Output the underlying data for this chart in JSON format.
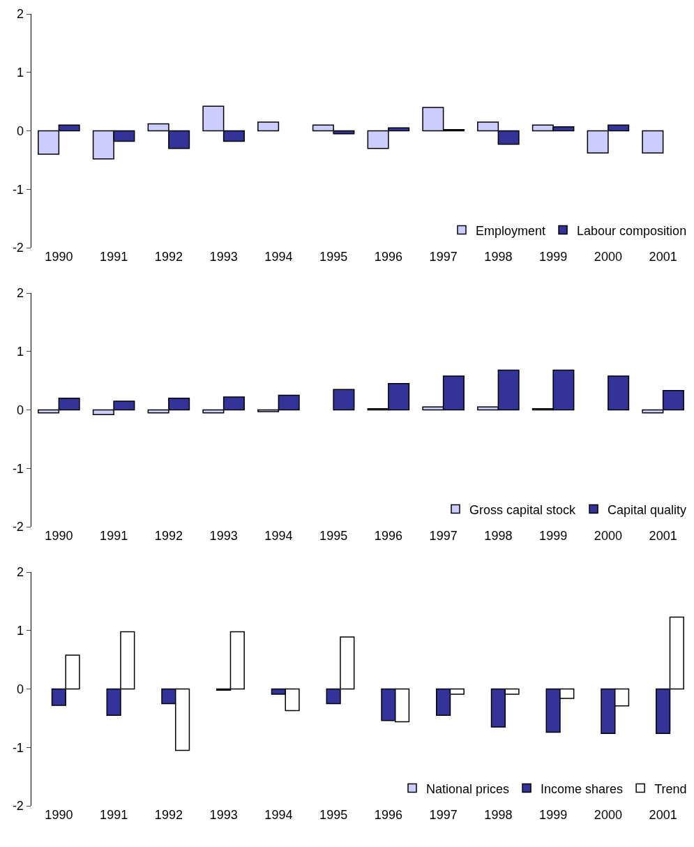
{
  "chart_data": [
    {
      "type": "bar",
      "categories": [
        "1990",
        "1991",
        "1992",
        "1993",
        "1994",
        "1995",
        "1996",
        "1997",
        "1998",
        "1999",
        "2000",
        "2001"
      ],
      "ylim": [
        -2,
        2
      ],
      "yticks": [
        -2,
        -1,
        0,
        1,
        2
      ],
      "grid": false,
      "legend": "bottom right",
      "series": [
        {
          "name": "Employment",
          "color": "#ccccff",
          "values": [
            -0.4,
            -0.48,
            0.12,
            0.42,
            0.15,
            0.1,
            -0.3,
            0.4,
            0.15,
            0.1,
            -0.38,
            -0.38
          ]
        },
        {
          "name": "Labour composition",
          "color": "#333399",
          "values": [
            0.1,
            -0.18,
            -0.3,
            -0.18,
            null,
            -0.05,
            0.05,
            0.02,
            -0.23,
            0.07,
            0.1,
            null
          ]
        }
      ]
    },
    {
      "type": "bar",
      "categories": [
        "1990",
        "1991",
        "1992",
        "1993",
        "1994",
        "1995",
        "1996",
        "1997",
        "1998",
        "1999",
        "2000",
        "2001"
      ],
      "ylim": [
        -2,
        2
      ],
      "yticks": [
        -2,
        -1,
        0,
        1,
        2
      ],
      "grid": false,
      "legend": "bottom right",
      "series": [
        {
          "name": "Gross capital stock",
          "color": "#ccccff",
          "values": [
            -0.05,
            -0.08,
            -0.05,
            -0.05,
            -0.03,
            null,
            0.02,
            0.05,
            0.05,
            0.02,
            null,
            -0.05
          ]
        },
        {
          "name": "Capital quality",
          "color": "#333399",
          "values": [
            0.2,
            0.15,
            0.2,
            0.22,
            0.25,
            0.35,
            0.45,
            0.58,
            0.68,
            0.68,
            0.58,
            0.33
          ]
        }
      ]
    },
    {
      "type": "bar",
      "categories": [
        "1990",
        "1991",
        "1992",
        "1993",
        "1994",
        "1995",
        "1996",
        "1997",
        "1998",
        "1999",
        "2000",
        "2001"
      ],
      "ylim": [
        -2,
        2
      ],
      "yticks": [
        -2,
        -1,
        0,
        1,
        2
      ],
      "grid": false,
      "legend": "bottom right",
      "series": [
        {
          "name": "National prices",
          "color": "#ccccff",
          "values": [
            null,
            null,
            null,
            null,
            null,
            null,
            null,
            null,
            null,
            null,
            null,
            null
          ]
        },
        {
          "name": "Income shares",
          "color": "#333399",
          "values": [
            -0.28,
            -0.45,
            -0.25,
            -0.02,
            -0.09,
            -0.25,
            -0.54,
            -0.45,
            -0.65,
            -0.74,
            -0.76,
            -0.76
          ]
        },
        {
          "name": "Trend",
          "color": "#ffffff",
          "values": [
            0.58,
            0.98,
            -1.05,
            0.98,
            -0.37,
            0.89,
            -0.56,
            -0.09,
            -0.09,
            -0.16,
            -0.29,
            1.23
          ]
        }
      ]
    }
  ]
}
